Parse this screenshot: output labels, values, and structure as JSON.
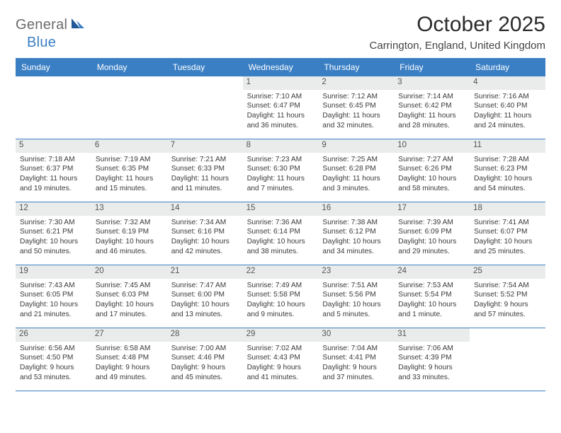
{
  "logo": {
    "general": "General",
    "blue": "Blue"
  },
  "header": {
    "month_title": "October 2025",
    "location": "Carrington, England, United Kingdom"
  },
  "colors": {
    "brand_blue": "#3a7fc4",
    "header_text": "#ffffff",
    "day_strip_bg": "#e9eceb",
    "body_text": "#3a3a3a",
    "page_bg": "#ffffff"
  },
  "typography": {
    "month_title_pt": 30,
    "location_pt": 15,
    "weekday_pt": 12,
    "daynum_pt": 11.5,
    "body_pt": 10.2,
    "font_family": "Arial"
  },
  "calendar": {
    "weekdays": [
      "Sunday",
      "Monday",
      "Tuesday",
      "Wednesday",
      "Thursday",
      "Friday",
      "Saturday"
    ],
    "weeks": [
      [
        {
          "day": "",
          "sunrise": "",
          "sunset": "",
          "daylight": ""
        },
        {
          "day": "",
          "sunrise": "",
          "sunset": "",
          "daylight": ""
        },
        {
          "day": "",
          "sunrise": "",
          "sunset": "",
          "daylight": ""
        },
        {
          "day": "1",
          "sunrise": "7:10 AM",
          "sunset": "6:47 PM",
          "daylight": "11 hours and 36 minutes."
        },
        {
          "day": "2",
          "sunrise": "7:12 AM",
          "sunset": "6:45 PM",
          "daylight": "11 hours and 32 minutes."
        },
        {
          "day": "3",
          "sunrise": "7:14 AM",
          "sunset": "6:42 PM",
          "daylight": "11 hours and 28 minutes."
        },
        {
          "day": "4",
          "sunrise": "7:16 AM",
          "sunset": "6:40 PM",
          "daylight": "11 hours and 24 minutes."
        }
      ],
      [
        {
          "day": "5",
          "sunrise": "7:18 AM",
          "sunset": "6:37 PM",
          "daylight": "11 hours and 19 minutes."
        },
        {
          "day": "6",
          "sunrise": "7:19 AM",
          "sunset": "6:35 PM",
          "daylight": "11 hours and 15 minutes."
        },
        {
          "day": "7",
          "sunrise": "7:21 AM",
          "sunset": "6:33 PM",
          "daylight": "11 hours and 11 minutes."
        },
        {
          "day": "8",
          "sunrise": "7:23 AM",
          "sunset": "6:30 PM",
          "daylight": "11 hours and 7 minutes."
        },
        {
          "day": "9",
          "sunrise": "7:25 AM",
          "sunset": "6:28 PM",
          "daylight": "11 hours and 3 minutes."
        },
        {
          "day": "10",
          "sunrise": "7:27 AM",
          "sunset": "6:26 PM",
          "daylight": "10 hours and 58 minutes."
        },
        {
          "day": "11",
          "sunrise": "7:28 AM",
          "sunset": "6:23 PM",
          "daylight": "10 hours and 54 minutes."
        }
      ],
      [
        {
          "day": "12",
          "sunrise": "7:30 AM",
          "sunset": "6:21 PM",
          "daylight": "10 hours and 50 minutes."
        },
        {
          "day": "13",
          "sunrise": "7:32 AM",
          "sunset": "6:19 PM",
          "daylight": "10 hours and 46 minutes."
        },
        {
          "day": "14",
          "sunrise": "7:34 AM",
          "sunset": "6:16 PM",
          "daylight": "10 hours and 42 minutes."
        },
        {
          "day": "15",
          "sunrise": "7:36 AM",
          "sunset": "6:14 PM",
          "daylight": "10 hours and 38 minutes."
        },
        {
          "day": "16",
          "sunrise": "7:38 AM",
          "sunset": "6:12 PM",
          "daylight": "10 hours and 34 minutes."
        },
        {
          "day": "17",
          "sunrise": "7:39 AM",
          "sunset": "6:09 PM",
          "daylight": "10 hours and 29 minutes."
        },
        {
          "day": "18",
          "sunrise": "7:41 AM",
          "sunset": "6:07 PM",
          "daylight": "10 hours and 25 minutes."
        }
      ],
      [
        {
          "day": "19",
          "sunrise": "7:43 AM",
          "sunset": "6:05 PM",
          "daylight": "10 hours and 21 minutes."
        },
        {
          "day": "20",
          "sunrise": "7:45 AM",
          "sunset": "6:03 PM",
          "daylight": "10 hours and 17 minutes."
        },
        {
          "day": "21",
          "sunrise": "7:47 AM",
          "sunset": "6:00 PM",
          "daylight": "10 hours and 13 minutes."
        },
        {
          "day": "22",
          "sunrise": "7:49 AM",
          "sunset": "5:58 PM",
          "daylight": "10 hours and 9 minutes."
        },
        {
          "day": "23",
          "sunrise": "7:51 AM",
          "sunset": "5:56 PM",
          "daylight": "10 hours and 5 minutes."
        },
        {
          "day": "24",
          "sunrise": "7:53 AM",
          "sunset": "5:54 PM",
          "daylight": "10 hours and 1 minute."
        },
        {
          "day": "25",
          "sunrise": "7:54 AM",
          "sunset": "5:52 PM",
          "daylight": "9 hours and 57 minutes."
        }
      ],
      [
        {
          "day": "26",
          "sunrise": "6:56 AM",
          "sunset": "4:50 PM",
          "daylight": "9 hours and 53 minutes."
        },
        {
          "day": "27",
          "sunrise": "6:58 AM",
          "sunset": "4:48 PM",
          "daylight": "9 hours and 49 minutes."
        },
        {
          "day": "28",
          "sunrise": "7:00 AM",
          "sunset": "4:46 PM",
          "daylight": "9 hours and 45 minutes."
        },
        {
          "day": "29",
          "sunrise": "7:02 AM",
          "sunset": "4:43 PM",
          "daylight": "9 hours and 41 minutes."
        },
        {
          "day": "30",
          "sunrise": "7:04 AM",
          "sunset": "4:41 PM",
          "daylight": "9 hours and 37 minutes."
        },
        {
          "day": "31",
          "sunrise": "7:06 AM",
          "sunset": "4:39 PM",
          "daylight": "9 hours and 33 minutes."
        },
        {
          "day": "",
          "sunrise": "",
          "sunset": "",
          "daylight": ""
        }
      ]
    ]
  }
}
